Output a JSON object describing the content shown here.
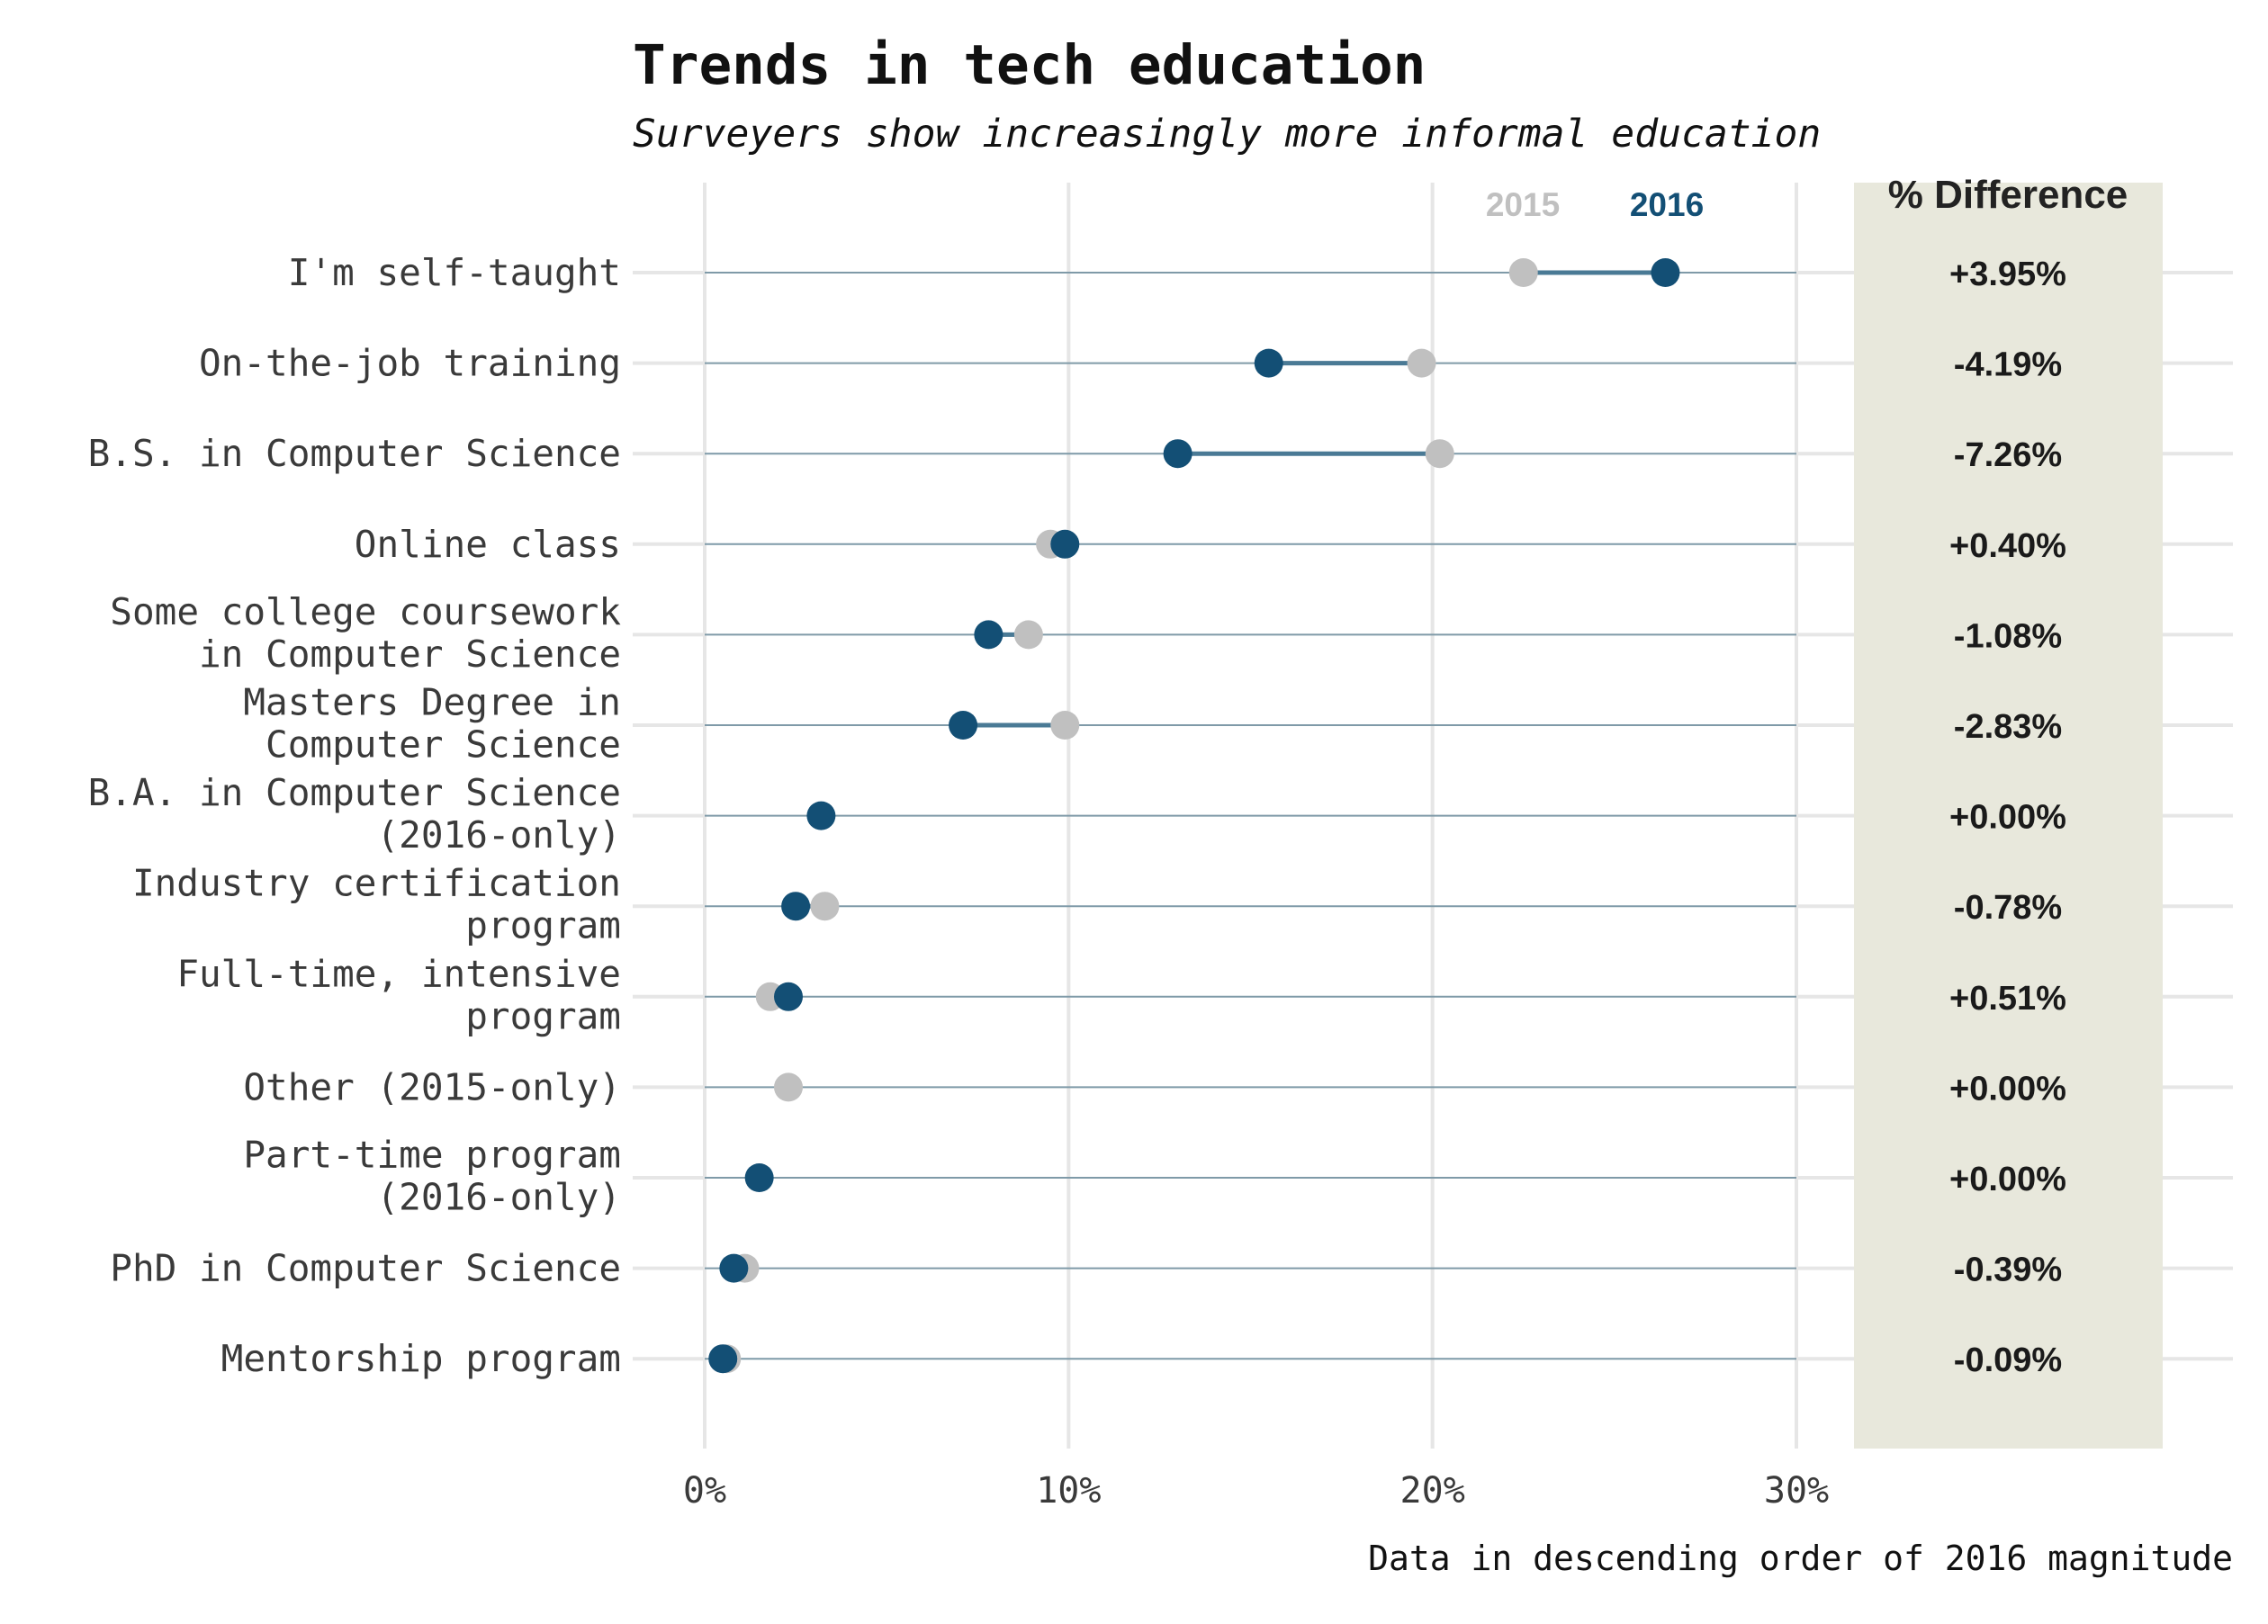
{
  "chart_data": {
    "type": "dumbbell",
    "title": "Trends in tech education",
    "subtitle": "Surveyers show increasingly more informal education",
    "caption": "Data in descending order of 2016 magnitude",
    "difference_header": "% Difference",
    "series": [
      {
        "name": "2015",
        "color": "#c0c0c0"
      },
      {
        "name": "2016",
        "color": "#134f75"
      }
    ],
    "x_ticks": [
      "0%",
      "10%",
      "20%",
      "30%"
    ],
    "xlim": [
      0,
      30
    ],
    "grid": true,
    "legend_position": "top-right",
    "colors": {
      "guide_line": "#7f9aa8",
      "connector": "#4a7a95",
      "panel_bg": "#e8e8dc",
      "grid": "#e6e6e6",
      "label_text": "#3a3a3a"
    },
    "categories": [
      {
        "label_lines": [
          "I'm self-taught"
        ],
        "v2015": 22.5,
        "v2016": 26.4,
        "diff": "+3.95%"
      },
      {
        "label_lines": [
          "On-the-job training"
        ],
        "v2015": 19.7,
        "v2016": 15.5,
        "diff": "-4.19%"
      },
      {
        "label_lines": [
          "B.S. in Computer Science"
        ],
        "v2015": 20.2,
        "v2016": 13.0,
        "diff": "-7.26%"
      },
      {
        "label_lines": [
          "Online class"
        ],
        "v2015": 9.5,
        "v2016": 9.9,
        "diff": "+0.40%"
      },
      {
        "label_lines": [
          "Some college coursework",
          "in Computer Science"
        ],
        "v2015": 8.9,
        "v2016": 7.8,
        "diff": "-1.08%"
      },
      {
        "label_lines": [
          "Masters Degree in",
          "Computer Science"
        ],
        "v2015": 9.9,
        "v2016": 7.1,
        "diff": "-2.83%"
      },
      {
        "label_lines": [
          "B.A. in Computer Science",
          "(2016-only)"
        ],
        "v2015": null,
        "v2016": 3.2,
        "diff": "+0.00%"
      },
      {
        "label_lines": [
          "Industry certification",
          "program"
        ],
        "v2015": 3.3,
        "v2016": 2.5,
        "diff": "-0.78%"
      },
      {
        "label_lines": [
          "Full-time, intensive",
          "program"
        ],
        "v2015": 1.8,
        "v2016": 2.3,
        "diff": "+0.51%"
      },
      {
        "label_lines": [
          "Other (2015-only)"
        ],
        "v2015": 2.3,
        "v2016": null,
        "diff": "+0.00%"
      },
      {
        "label_lines": [
          "Part-time program",
          "(2016-only)"
        ],
        "v2015": null,
        "v2016": 1.5,
        "diff": "+0.00%"
      },
      {
        "label_lines": [
          "PhD in Computer Science"
        ],
        "v2015": 1.1,
        "v2016": 0.8,
        "diff": "-0.39%"
      },
      {
        "label_lines": [
          "Mentorship program"
        ],
        "v2015": 0.6,
        "v2016": 0.5,
        "diff": "-0.09%"
      }
    ]
  }
}
